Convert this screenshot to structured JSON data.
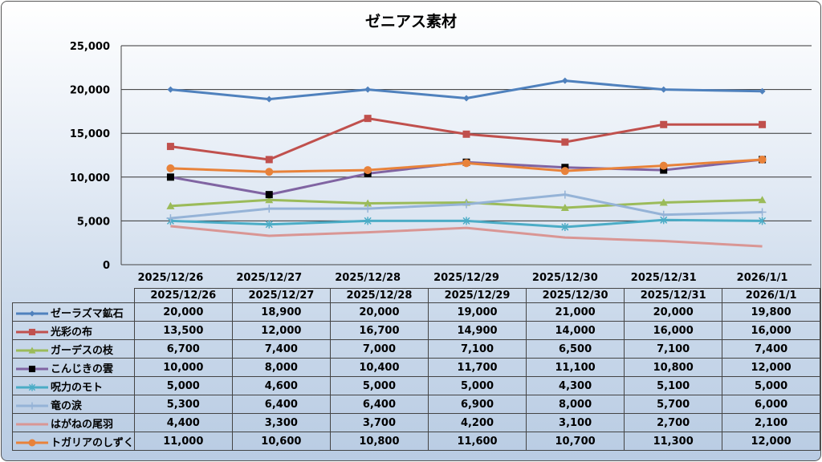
{
  "chart_data": {
    "type": "line",
    "title": "ゼニアス素材",
    "categories": [
      "2025/12/26",
      "2025/12/27",
      "2025/12/28",
      "2025/12/29",
      "2025/12/30",
      "2025/12/31",
      "2026/1/1"
    ],
    "ylim": [
      0,
      25000
    ],
    "yticks": [
      0,
      5000,
      10000,
      15000,
      20000,
      25000
    ],
    "ytick_labels": [
      "0",
      "5,000",
      "10,000",
      "15,000",
      "20,000",
      "25,000"
    ],
    "grid": true,
    "legend": "data-table",
    "series": [
      {
        "name": "ゼーラズマ鉱石",
        "color": "#4f81bd",
        "marker": "diamond",
        "values": [
          20000,
          18900,
          20000,
          19000,
          21000,
          20000,
          19800
        ],
        "labels": [
          "20,000",
          "18,900",
          "20,000",
          "19,000",
          "21,000",
          "20,000",
          "19,800"
        ]
      },
      {
        "name": "光彩の布",
        "color": "#c0504d",
        "marker": "square",
        "values": [
          13500,
          12000,
          16700,
          14900,
          14000,
          16000,
          16000
        ],
        "labels": [
          "13,500",
          "12,000",
          "16,700",
          "14,900",
          "14,000",
          "16,000",
          "16,000"
        ]
      },
      {
        "name": "ガーデスの枝",
        "color": "#9bbb59",
        "marker": "triangle",
        "values": [
          6700,
          7400,
          7000,
          7100,
          6500,
          7100,
          7400
        ],
        "labels": [
          "6,700",
          "7,400",
          "7,000",
          "7,100",
          "6,500",
          "7,100",
          "7,400"
        ]
      },
      {
        "name": "こんじきの雲",
        "color": "#8064a2",
        "marker": "blacksquare",
        "values": [
          10000,
          8000,
          10400,
          11700,
          11100,
          10800,
          12000
        ],
        "labels": [
          "10,000",
          "8,000",
          "10,400",
          "11,700",
          "11,100",
          "10,800",
          "12,000"
        ]
      },
      {
        "name": "呪力のモト",
        "color": "#4bacc6",
        "marker": "asterisk",
        "values": [
          5000,
          4600,
          5000,
          5000,
          4300,
          5100,
          5000
        ],
        "labels": [
          "5,000",
          "4,600",
          "5,000",
          "5,000",
          "4,300",
          "5,100",
          "5,000"
        ]
      },
      {
        "name": "竜の涙",
        "color": "#95b3d7",
        "marker": "plus",
        "values": [
          5300,
          6400,
          6400,
          6900,
          8000,
          5700,
          6000
        ],
        "labels": [
          "5,300",
          "6,400",
          "6,400",
          "6,900",
          "8,000",
          "5,700",
          "6,000"
        ]
      },
      {
        "name": "はがねの尾羽",
        "color": "#d99694",
        "marker": "none",
        "values": [
          4400,
          3300,
          3700,
          4200,
          3100,
          2700,
          2100
        ],
        "labels": [
          "4,400",
          "3,300",
          "3,700",
          "4,200",
          "3,100",
          "2,700",
          "2,100"
        ]
      },
      {
        "name": "トガリアのしずく",
        "color": "#e8823a",
        "marker": "circle",
        "values": [
          11000,
          10600,
          10800,
          11600,
          10700,
          11300,
          12000
        ],
        "labels": [
          "11,000",
          "10,600",
          "10,800",
          "11,600",
          "10,700",
          "11,300",
          "12,000"
        ]
      }
    ]
  }
}
